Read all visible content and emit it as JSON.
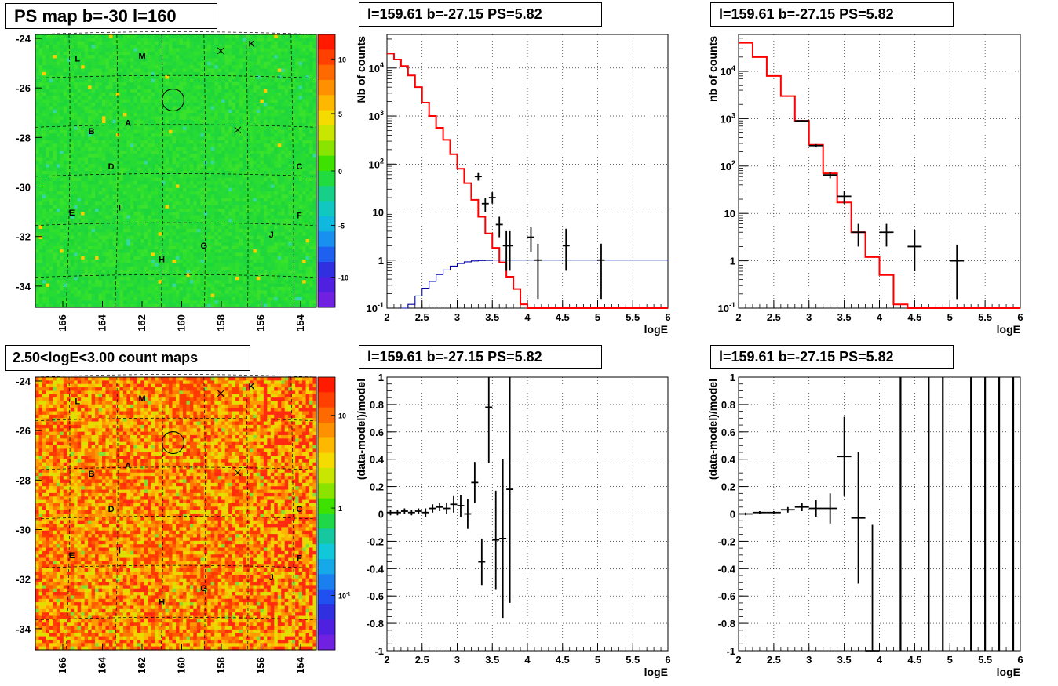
{
  "titles": {
    "map_ps": "PS map b=-30 l=160",
    "map_counts": "2.50<logE<3.00 count maps",
    "spec_full": "l=159.61 b=-27.15 PS=5.82",
    "spec_near": "l=159.61 b=-27.15 PS=5.82",
    "ratio_full": "l=159.61 b=-27.15 PS=5.82",
    "ratio_near": "l=159.61 b=-27.15 PS=5.82"
  },
  "chart_data": [
    {
      "id": "map_ps",
      "type": "heatmap",
      "title": "PS map b=-30 l=160",
      "xticks": [
        "166",
        "164",
        "162",
        "160",
        "158",
        "156",
        "154"
      ],
      "yticks": [
        "-24",
        "-26",
        "-28",
        "-30",
        "-32",
        "-34"
      ],
      "colorbar_ticks": [
        "10",
        "5",
        "0",
        "-5",
        "-10"
      ],
      "colorbar_range": [
        -12,
        12
      ],
      "source_labels": [
        "K",
        "L",
        "M",
        "A",
        "B",
        "C",
        "D",
        "E",
        "F",
        "G",
        "H",
        "I",
        "J"
      ],
      "dominant_color": "#22dd33"
    },
    {
      "id": "map_counts",
      "type": "heatmap",
      "title": "2.50<logE<3.00 count maps",
      "xticks": [
        "166",
        "164",
        "162",
        "160",
        "158",
        "156",
        "154"
      ],
      "yticks": [
        "-24",
        "-26",
        "-28",
        "-30",
        "-32",
        "-34"
      ],
      "colorbar_ticks": [
        "10",
        "1",
        "10^-1"
      ],
      "colorbar_scale": "log",
      "source_labels": [
        "K",
        "L",
        "M",
        "A",
        "B",
        "C",
        "D",
        "E",
        "F",
        "G",
        "H",
        "I",
        "J"
      ],
      "dominant_color": "#f07020"
    },
    {
      "id": "spec_full",
      "type": "line",
      "title": "l=159.61 b=-27.15 PS=5.82",
      "xlabel": "logE",
      "ylabel": "Nb of counts",
      "xlim": [
        2,
        6
      ],
      "ylim": [
        0.1,
        50000
      ],
      "yscale": "log",
      "xticks": [
        "2",
        "2.5",
        "3",
        "3.5",
        "4",
        "4.5",
        "5",
        "5.5",
        "6"
      ],
      "yticks": [
        "10^-1",
        "1",
        "10",
        "10^2",
        "10^3",
        "10^4"
      ],
      "grid": true,
      "series": [
        {
          "style": "step",
          "color": "#ff0000",
          "edges": [
            2.0,
            2.1,
            2.2,
            2.3,
            2.4,
            2.5,
            2.6,
            2.7,
            2.8,
            2.9,
            3.0,
            3.1,
            3.2,
            3.3,
            3.4,
            3.5,
            3.6,
            3.7,
            3.8,
            3.9,
            4.0,
            4.1,
            4.2,
            4.3,
            6.0
          ],
          "values": [
            20000,
            15000,
            11000,
            7000,
            4000,
            1900,
            1000,
            570,
            320,
            160,
            80,
            40,
            18,
            8,
            3.6,
            1.8,
            0.9,
            0.45,
            0.25,
            0.12,
            0.1,
            0.1,
            0.1,
            0.1
          ]
        },
        {
          "style": "step",
          "color": "#0000aa",
          "edges": [
            2.2,
            2.3,
            2.4,
            2.5,
            2.6,
            2.7,
            2.8,
            2.9,
            3.0,
            3.1,
            3.2,
            3.3,
            3.4,
            3.5,
            3.6,
            3.7,
            3.8,
            6.0
          ],
          "values": [
            0.1,
            0.12,
            0.18,
            0.26,
            0.36,
            0.5,
            0.62,
            0.75,
            0.85,
            0.92,
            0.96,
            0.98,
            0.99,
            1.0,
            1.0,
            1.0,
            1.0
          ]
        },
        {
          "style": "errorbar",
          "color": "#000000",
          "x": [
            3.3,
            3.4,
            3.5,
            3.6,
            3.7,
            3.75,
            4.05,
            4.15,
            4.55,
            5.05
          ],
          "xerr": 0.05,
          "y": [
            55,
            15,
            20,
            5.5,
            2,
            2,
            3,
            1,
            2,
            1
          ],
          "ylo": [
            45,
            10,
            15,
            3,
            0.6,
            0.6,
            1.5,
            0.15,
            0.6,
            0.15
          ],
          "yhi": [
            65,
            20,
            26,
            8,
            4,
            4,
            5,
            2.2,
            4.5,
            2.2
          ]
        }
      ]
    },
    {
      "id": "spec_near",
      "type": "line",
      "title": "l=159.61 b=-27.15 PS=5.82",
      "xlabel": "logE",
      "ylabel": "nb of counts",
      "xlim": [
        2,
        6
      ],
      "ylim": [
        0.1,
        60000
      ],
      "yscale": "log",
      "xticks": [
        "2",
        "2.5",
        "3",
        "3.5",
        "4",
        "4.5",
        "5",
        "5.5",
        "6"
      ],
      "yticks": [
        "10^-1",
        "1",
        "10",
        "10^2",
        "10^3",
        "10^4"
      ],
      "grid": true,
      "series": [
        {
          "style": "step",
          "color": "#ff0000",
          "edges": [
            2.0,
            2.2,
            2.4,
            2.6,
            2.8,
            3.0,
            3.2,
            3.4,
            3.6,
            3.8,
            4.0,
            4.2,
            4.4,
            6.0
          ],
          "values": [
            40000,
            20000,
            8000,
            3000,
            900,
            280,
            70,
            17,
            4,
            1.2,
            0.5,
            0.12,
            0.1
          ]
        },
        {
          "style": "errorbar",
          "color": "#000000",
          "x": [
            2.9,
            3.1,
            3.3,
            3.5,
            3.7,
            4.1,
            4.5,
            5.1
          ],
          "xerr": 0.1,
          "y": [
            900,
            270,
            65,
            23,
            4,
            4,
            2,
            1
          ],
          "ylo": [
            870,
            250,
            55,
            16,
            2,
            2,
            0.6,
            0.15
          ],
          "yhi": [
            930,
            290,
            75,
            30,
            6,
            6,
            4.5,
            2.2
          ]
        }
      ]
    },
    {
      "id": "ratio_full",
      "type": "scatter",
      "title": "l=159.61 b=-27.15 PS=5.82",
      "xlabel": "logE",
      "ylabel": "(data-model)/model",
      "xlim": [
        2,
        6
      ],
      "ylim": [
        -1,
        1
      ],
      "xticks": [
        "2",
        "2.5",
        "3",
        "3.5",
        "4",
        "4.5",
        "5",
        "5.5",
        "6"
      ],
      "yticks": [
        "-1",
        "-0.8",
        "-0.6",
        "-0.4",
        "-0.2",
        "0",
        "0.2",
        "0.4",
        "0.6",
        "0.8",
        "1"
      ],
      "grid": true,
      "series": [
        {
          "style": "errorbar",
          "color": "#000000",
          "x": [
            2.05,
            2.15,
            2.25,
            2.35,
            2.45,
            2.55,
            2.65,
            2.75,
            2.85,
            2.95,
            3.05,
            3.15,
            3.25,
            3.35,
            3.45,
            3.55,
            3.65,
            3.75
          ],
          "xerr": 0.05,
          "y": [
            0.01,
            0.01,
            0.02,
            0.01,
            0.02,
            0.01,
            0.04,
            0.05,
            0.04,
            0.07,
            0.06,
            0.0,
            0.23,
            -0.35,
            0.78,
            -0.19,
            -0.18,
            0.18
          ],
          "ylo": [
            -0.01,
            -0.01,
            0.0,
            -0.01,
            0.0,
            -0.02,
            0.01,
            0.02,
            0.0,
            0.01,
            -0.02,
            -0.11,
            0.08,
            -0.52,
            0.37,
            -0.55,
            -0.76,
            -0.65
          ],
          "yhi": [
            0.03,
            0.03,
            0.04,
            0.03,
            0.04,
            0.04,
            0.07,
            0.08,
            0.08,
            0.13,
            0.14,
            0.11,
            0.38,
            -0.18,
            1.0,
            0.17,
            0.4,
            1.0
          ]
        }
      ]
    },
    {
      "id": "ratio_near",
      "type": "scatter",
      "title": "l=159.61 b=-27.15 PS=5.82",
      "xlabel": "logE",
      "ylabel": "(data-model)/model",
      "xlim": [
        2,
        6
      ],
      "ylim": [
        -1,
        1
      ],
      "xticks": [
        "2",
        "2.5",
        "3",
        "3.5",
        "4",
        "4.5",
        "5",
        "5.5",
        "6"
      ],
      "yticks": [
        "-1",
        "-0.8",
        "-0.6",
        "-0.4",
        "-0.2",
        "0",
        "0.2",
        "0.4",
        "0.6",
        "0.8",
        "1"
      ],
      "grid": true,
      "series": [
        {
          "style": "errorbar",
          "color": "#000000",
          "x": [
            2.1,
            2.3,
            2.5,
            2.7,
            2.9,
            3.1,
            3.3,
            3.5,
            3.7,
            3.9
          ],
          "xerr": 0.1,
          "y": [
            0.0,
            0.01,
            0.01,
            0.03,
            0.05,
            0.04,
            0.04,
            0.42,
            -0.03,
            -1.0
          ],
          "ylo": [
            -0.01,
            0.0,
            0.0,
            0.01,
            0.02,
            -0.02,
            -0.07,
            0.13,
            -0.51,
            -1.0
          ],
          "yhi": [
            0.01,
            0.02,
            0.02,
            0.05,
            0.08,
            0.1,
            0.15,
            0.71,
            0.45,
            -0.08
          ]
        },
        {
          "style": "vline",
          "color": "#000000",
          "x": [
            4.3,
            4.7,
            4.9,
            5.3,
            5.5,
            5.7,
            5.9
          ]
        }
      ]
    }
  ]
}
